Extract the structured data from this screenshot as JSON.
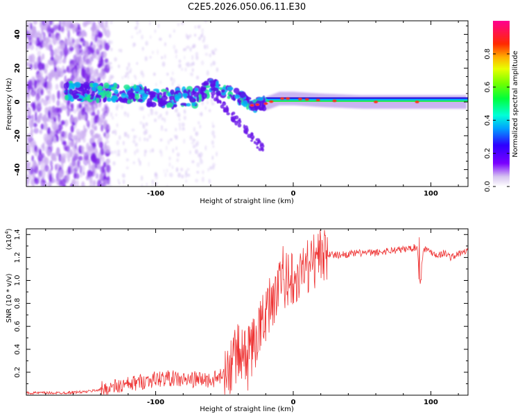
{
  "title": "C2E5.2026.050.06.11.E30",
  "chart_data": [
    {
      "type": "heatmap",
      "name": "spectrogram",
      "xlabel": "Height of straight line (km)",
      "ylabel": "Frequency (Hz)",
      "xlim": [
        -194,
        127
      ],
      "ylim": [
        -50,
        48
      ],
      "xticks": [
        -100,
        0,
        100
      ],
      "yticks": [
        -40,
        -20,
        0,
        20,
        40
      ],
      "colorbar": {
        "label": "Normalized spectral amplitude",
        "range": [
          0.0,
          1.0
        ],
        "ticks": [
          0.0,
          0.2,
          0.4,
          0.6,
          0.8
        ]
      },
      "ridge": {
        "x": [
          -165,
          -150,
          -130,
          -110,
          -90,
          -70,
          -60,
          -50,
          -40,
          -30,
          -20,
          -10,
          0,
          20,
          50,
          90,
          127
        ],
        "y": [
          6,
          6,
          5,
          4,
          2,
          3,
          10,
          6,
          3,
          -2,
          -1,
          2,
          2,
          1,
          0,
          0,
          0
        ]
      }
    },
    {
      "type": "line",
      "name": "snr",
      "xlabel": "Height of straight line (km)",
      "ylabel": "SNR (10 * v/v)",
      "yscale_label": "(x10",
      "yscale_exp": "4",
      "xlim": [
        -194,
        127
      ],
      "ylim": [
        0,
        1.45
      ],
      "xticks": [
        -100,
        0,
        100
      ],
      "yticks": [
        0.2,
        0.4,
        0.6,
        0.8,
        1.0,
        1.2,
        1.4
      ],
      "color": "#ee3333",
      "series": [
        {
          "name": "SNR",
          "x": [
            -194,
            -170,
            -150,
            -140,
            -130,
            -120,
            -110,
            -100,
            -90,
            -80,
            -70,
            -60,
            -50,
            -45,
            -40,
            -35,
            -30,
            -25,
            -20,
            -15,
            -10,
            -5,
            0,
            5,
            10,
            15,
            20,
            30,
            40,
            50,
            60,
            70,
            80,
            90,
            92,
            95,
            100,
            105,
            110,
            115,
            120,
            127
          ],
          "y": [
            0.02,
            0.02,
            0.03,
            0.05,
            0.07,
            0.09,
            0.12,
            0.14,
            0.15,
            0.13,
            0.14,
            0.13,
            0.17,
            0.28,
            0.38,
            0.33,
            0.42,
            0.55,
            0.72,
            0.85,
            0.92,
            1.0,
            1.05,
            1.08,
            1.12,
            1.2,
            1.24,
            1.22,
            1.23,
            1.24,
            1.24,
            1.26,
            1.27,
            1.29,
            1.05,
            1.28,
            1.25,
            1.22,
            1.24,
            1.2,
            1.23,
            1.26
          ]
        }
      ]
    }
  ]
}
